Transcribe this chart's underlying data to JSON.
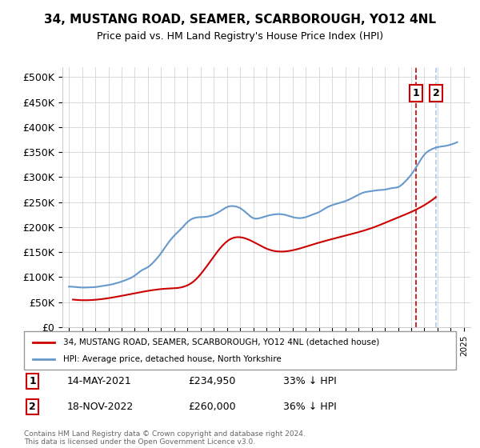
{
  "title": "34, MUSTANG ROAD, SEAMER, SCARBOROUGH, YO12 4NL",
  "subtitle": "Price paid vs. HM Land Registry's House Price Index (HPI)",
  "legend_line1": "34, MUSTANG ROAD, SEAMER, SCARBOROUGH, YO12 4NL (detached house)",
  "legend_line2": "HPI: Average price, detached house, North Yorkshire",
  "footnote": "Contains HM Land Registry data © Crown copyright and database right 2024.\nThis data is licensed under the Open Government Licence v3.0.",
  "sale1_label": "1",
  "sale1_date": "14-MAY-2021",
  "sale1_price": "£234,950",
  "sale1_hpi": "33% ↓ HPI",
  "sale2_label": "2",
  "sale2_date": "18-NOV-2022",
  "sale2_price": "£260,000",
  "sale2_hpi": "36% ↓ HPI",
  "red_color": "#cc0000",
  "blue_color": "#6699cc",
  "dashed_red": "#cc0000",
  "dashed_blue": "#aaccee",
  "sale1_x": 2021.37,
  "sale2_x": 2022.88,
  "ylim": [
    0,
    520000
  ],
  "xlim_start": 1994.5,
  "xlim_end": 2025.5,
  "yticks": [
    0,
    50000,
    100000,
    150000,
    200000,
    250000,
    300000,
    350000,
    400000,
    450000,
    500000
  ],
  "ytick_labels": [
    "£0",
    "£50K",
    "£100K",
    "£150K",
    "£200K",
    "£250K",
    "£300K",
    "£350K",
    "£400K",
    "£450K",
    "£500K"
  ],
  "hpi_years": [
    1995,
    1995.5,
    1996,
    1996.5,
    1997,
    1997.5,
    1998,
    1998.5,
    1999,
    1999.5,
    2000,
    2000.5,
    2001,
    2001.5,
    2002,
    2002.5,
    2003,
    2003.5,
    2004,
    2004.5,
    2005,
    2005.5,
    2006,
    2006.5,
    2007,
    2007.5,
    2008,
    2008.5,
    2009,
    2009.5,
    2010,
    2010.5,
    2011,
    2011.5,
    2012,
    2012.5,
    2013,
    2013.5,
    2014,
    2014.5,
    2015,
    2015.5,
    2016,
    2016.5,
    2017,
    2017.5,
    2018,
    2018.5,
    2019,
    2019.5,
    2020,
    2020.5,
    2021,
    2021.5,
    2022,
    2022.5,
    2023,
    2023.5,
    2024,
    2024.5
  ],
  "hpi_values": [
    81000,
    80000,
    79000,
    79500,
    80000,
    82000,
    84000,
    87000,
    91000,
    96000,
    103000,
    113000,
    120000,
    132000,
    148000,
    167000,
    183000,
    196000,
    210000,
    218000,
    220000,
    221000,
    225000,
    232000,
    240000,
    242000,
    238000,
    228000,
    218000,
    218000,
    222000,
    225000,
    226000,
    224000,
    220000,
    218000,
    220000,
    225000,
    230000,
    238000,
    244000,
    248000,
    252000,
    258000,
    265000,
    270000,
    272000,
    274000,
    275000,
    278000,
    280000,
    290000,
    305000,
    325000,
    345000,
    355000,
    360000,
    362000,
    365000,
    370000
  ],
  "price_years": [
    1995.3,
    1998.5,
    2002.5,
    2004.5,
    2007.2,
    2010.2,
    2013.5,
    2016.3,
    2018.2,
    2019.6,
    2021.37,
    2022.88
  ],
  "price_values": [
    55000,
    60000,
    77000,
    92000,
    175000,
    155000,
    165000,
    185000,
    200000,
    215000,
    234950,
    260000
  ]
}
